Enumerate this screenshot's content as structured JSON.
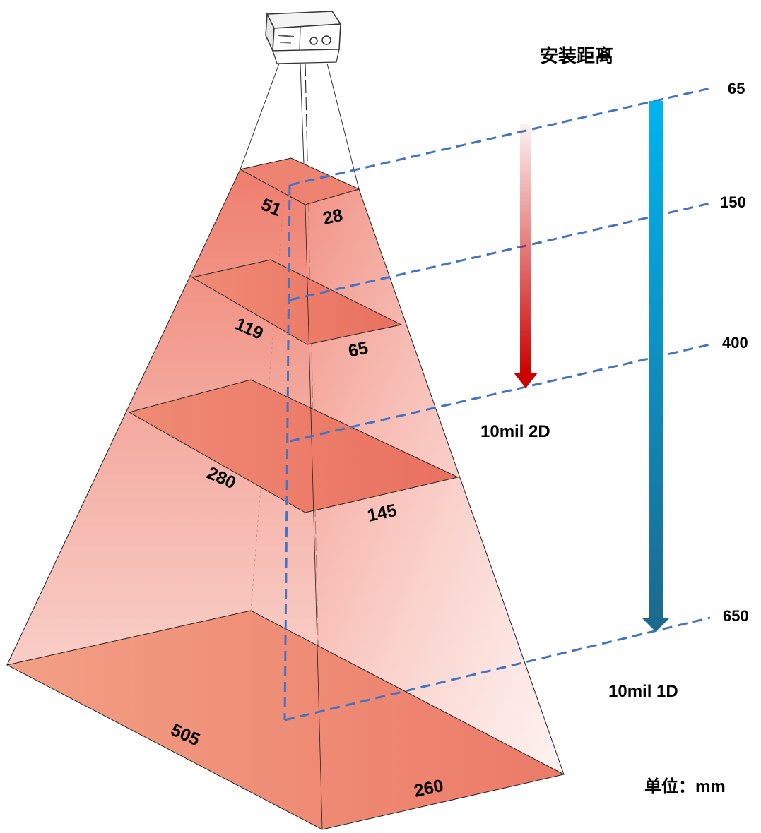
{
  "title": "安装距离",
  "unit_label": "单位：mm",
  "distances": [
    "65",
    "150",
    "400",
    "650"
  ],
  "fov_layers": [
    {
      "distance": "65",
      "width": "51",
      "depth": "28"
    },
    {
      "distance": "150",
      "width": "119",
      "depth": "65"
    },
    {
      "distance": "400",
      "width": "280",
      "depth": "145"
    },
    {
      "distance": "650",
      "width": "505",
      "depth": "260"
    }
  ],
  "ranges": [
    {
      "label": "10mil 2D",
      "color": "#cc0000"
    },
    {
      "label": "10mil 1D",
      "color": "#1ea8e6"
    }
  ],
  "colors": {
    "fov_fill": "#ee7766",
    "dashed_lines": "#4472c4",
    "arrow_2d": "#cc0000",
    "arrow_1d_top": "#00b4f0",
    "arrow_1d_bottom": "#1d6a8f"
  },
  "icons": {
    "scanner": "barcode-scanner-device-icon"
  }
}
